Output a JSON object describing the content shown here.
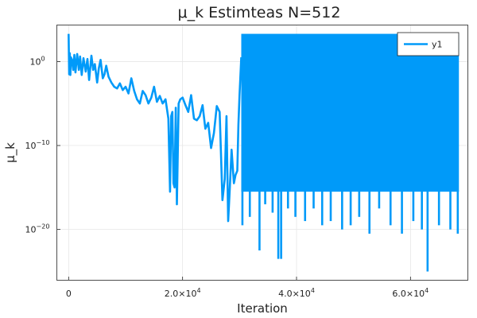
{
  "chart_data": {
    "type": "line",
    "title": "μ_k Estimteas N=512",
    "xlabel": "Iteration",
    "ylabel": "μ_k",
    "y_scale": "log10",
    "grid": true,
    "legend_position": "top-right",
    "xlim": [
      -2000,
      70000
    ],
    "ylim_log10": [
      -26,
      4.3
    ],
    "x_ticks": [
      {
        "value": 0,
        "base": "0",
        "exp": ""
      },
      {
        "value": 20000,
        "base": "2.0×10",
        "exp": "4"
      },
      {
        "value": 40000,
        "base": "4.0×10",
        "exp": "4"
      },
      {
        "value": 60000,
        "base": "6.0×10",
        "exp": "4"
      }
    ],
    "y_ticks": [
      {
        "log": 0,
        "base": "10",
        "exp": "0"
      },
      {
        "log": -10,
        "base": "10",
        "exp": "−10"
      },
      {
        "log": -20,
        "base": "10",
        "exp": "−20"
      }
    ],
    "series": [
      {
        "name": "y1",
        "color": "#009af9",
        "x": [
          0,
          100,
          200,
          300,
          400,
          600,
          800,
          1000,
          1200,
          1500,
          1800,
          2000,
          2300,
          2600,
          3000,
          3300,
          3600,
          4000,
          4300,
          4600,
          5000,
          5300,
          5600,
          6000,
          6300,
          6600,
          7000,
          7500,
          8000,
          8500,
          9000,
          9500,
          10000,
          10500,
          11000,
          11500,
          12000,
          12500,
          13000,
          13500,
          14000,
          14500,
          15000,
          15500,
          16000,
          16500,
          17000,
          17500,
          17800,
          18000,
          18200,
          18400,
          18600,
          18800,
          19000,
          19300,
          19600,
          20000,
          20500,
          21000,
          21500,
          22000,
          22500,
          23000,
          23500,
          24000,
          24500,
          25000,
          25500,
          26000,
          26500,
          27000,
          27400,
          27700,
          28000,
          28300,
          28600,
          29000,
          29300,
          29600,
          29800,
          30000,
          30300
        ],
        "log_y": [
          3.3,
          -1.5,
          1.0,
          -1.6,
          0.5,
          0.2,
          -1.0,
          0.8,
          -1.3,
          0.9,
          -1.0,
          0.6,
          -1.6,
          0.4,
          -1.2,
          0.3,
          -2.2,
          0.7,
          -1.0,
          -0.3,
          -2.5,
          -0.8,
          0.2,
          -2.0,
          -1.5,
          -0.5,
          -1.8,
          -2.5,
          -3.0,
          -3.2,
          -2.6,
          -3.4,
          -3.0,
          -3.8,
          -2.0,
          -3.5,
          -4.5,
          -5.0,
          -3.5,
          -4.0,
          -5.0,
          -4.3,
          -3.0,
          -4.8,
          -4.1,
          -5.0,
          -4.5,
          -6.8,
          -15.5,
          -6.5,
          -6.0,
          -14.5,
          -15.0,
          -5.5,
          -17.0,
          -5.0,
          -4.5,
          -4.3,
          -5.2,
          -6.0,
          -4.0,
          -6.8,
          -7.0,
          -6.5,
          -5.2,
          -8.0,
          -7.3,
          -10.3,
          -8.5,
          -5.3,
          -6.0,
          -16.5,
          -14.0,
          -6.5,
          -19.0,
          -15.0,
          -10.5,
          -14.5,
          -13.5,
          -13.0,
          -7.5,
          -4.0,
          0.5
        ]
      }
    ],
    "oscillation_band": {
      "x_start": 30300,
      "x_end": 68500,
      "upper_log_y": 3.3,
      "lower_log_y_typical": -15.5,
      "min_spikes": [
        {
          "x": 30500,
          "log_y": -19.5
        },
        {
          "x": 31800,
          "log_y": -18.5
        },
        {
          "x": 33500,
          "log_y": -22.5
        },
        {
          "x": 34500,
          "log_y": -17.0
        },
        {
          "x": 35800,
          "log_y": -18.0
        },
        {
          "x": 36800,
          "log_y": -23.5
        },
        {
          "x": 37300,
          "log_y": -23.5
        },
        {
          "x": 38500,
          "log_y": -17.5
        },
        {
          "x": 39800,
          "log_y": -18.5
        },
        {
          "x": 41500,
          "log_y": -19.0
        },
        {
          "x": 43000,
          "log_y": -17.5
        },
        {
          "x": 44500,
          "log_y": -19.5
        },
        {
          "x": 46000,
          "log_y": -19.0
        },
        {
          "x": 48000,
          "log_y": -20.0
        },
        {
          "x": 49500,
          "log_y": -19.5
        },
        {
          "x": 51000,
          "log_y": -18.5
        },
        {
          "x": 52800,
          "log_y": -20.5
        },
        {
          "x": 54500,
          "log_y": -17.5
        },
        {
          "x": 56500,
          "log_y": -19.5
        },
        {
          "x": 58500,
          "log_y": -20.5
        },
        {
          "x": 60500,
          "log_y": -19.0
        },
        {
          "x": 62000,
          "log_y": -20.0
        },
        {
          "x": 63000,
          "log_y": -25.0
        },
        {
          "x": 65000,
          "log_y": -19.5
        },
        {
          "x": 67000,
          "log_y": -20.0
        },
        {
          "x": 68300,
          "log_y": -20.5
        }
      ]
    }
  }
}
